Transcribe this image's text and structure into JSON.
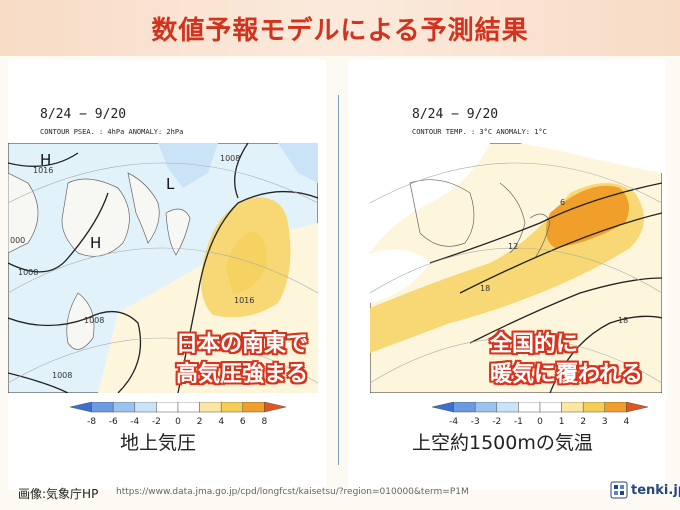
{
  "title": "数値予報モデルによる予測結果",
  "left_panel": {
    "period": "8/24 − 9/20",
    "contour": "CONTOUR PSEA.  :  4hPa    ANOMALY:  2hPa",
    "callout_line1": "日本の南東で",
    "callout_line2": "高気圧強まる",
    "colorbar_ticks": [
      "-8",
      "-6",
      "-4",
      "-2",
      "0",
      "2",
      "4",
      "6",
      "8"
    ],
    "colorbar_colors": [
      "#3a6fcf",
      "#6a9ae0",
      "#9cc2ee",
      "#cbe3f6",
      "#ffffff",
      "#ffffff",
      "#fbe7a3",
      "#f5cf55",
      "#ef9f2a",
      "#e2561e"
    ],
    "variable_label": "地上気圧",
    "map_labels": {
      "high1": "H",
      "high2": "H",
      "low": "L",
      "c1016a": "1016",
      "c1008a": "1008",
      "c1008b": "1008",
      "c1008c": "1008",
      "c1008d": "1008",
      "c1016b": "1016",
      "c1000": "000"
    }
  },
  "right_panel": {
    "period": "8/24 − 9/20",
    "contour": "CONTOUR TEMP.  :  3°C    ANOMALY:  1°C",
    "callout_line1": "全国的に",
    "callout_line2": "暖気に覆われる",
    "colorbar_ticks": [
      "-4",
      "-3",
      "-2",
      "-1",
      "0",
      "1",
      "2",
      "3",
      "4"
    ],
    "colorbar_colors": [
      "#3a6fcf",
      "#6a9ae0",
      "#9cc2ee",
      "#cbe3f6",
      "#ffffff",
      "#ffffff",
      "#fbe7a3",
      "#f5cf55",
      "#ef9f2a",
      "#e2561e"
    ],
    "variable_label": "上空約1500mの気温",
    "map_labels": {
      "c12": "12",
      "c18a": "18",
      "c18b": "18",
      "c6": "6"
    }
  },
  "footer": {
    "credit": "画像:気象庁HP",
    "url": "https://www.data.jma.go.jp/cpd/longfcst/kaisetsu/?region=010000&term=P1M",
    "logo_text": "tenki.jp"
  }
}
